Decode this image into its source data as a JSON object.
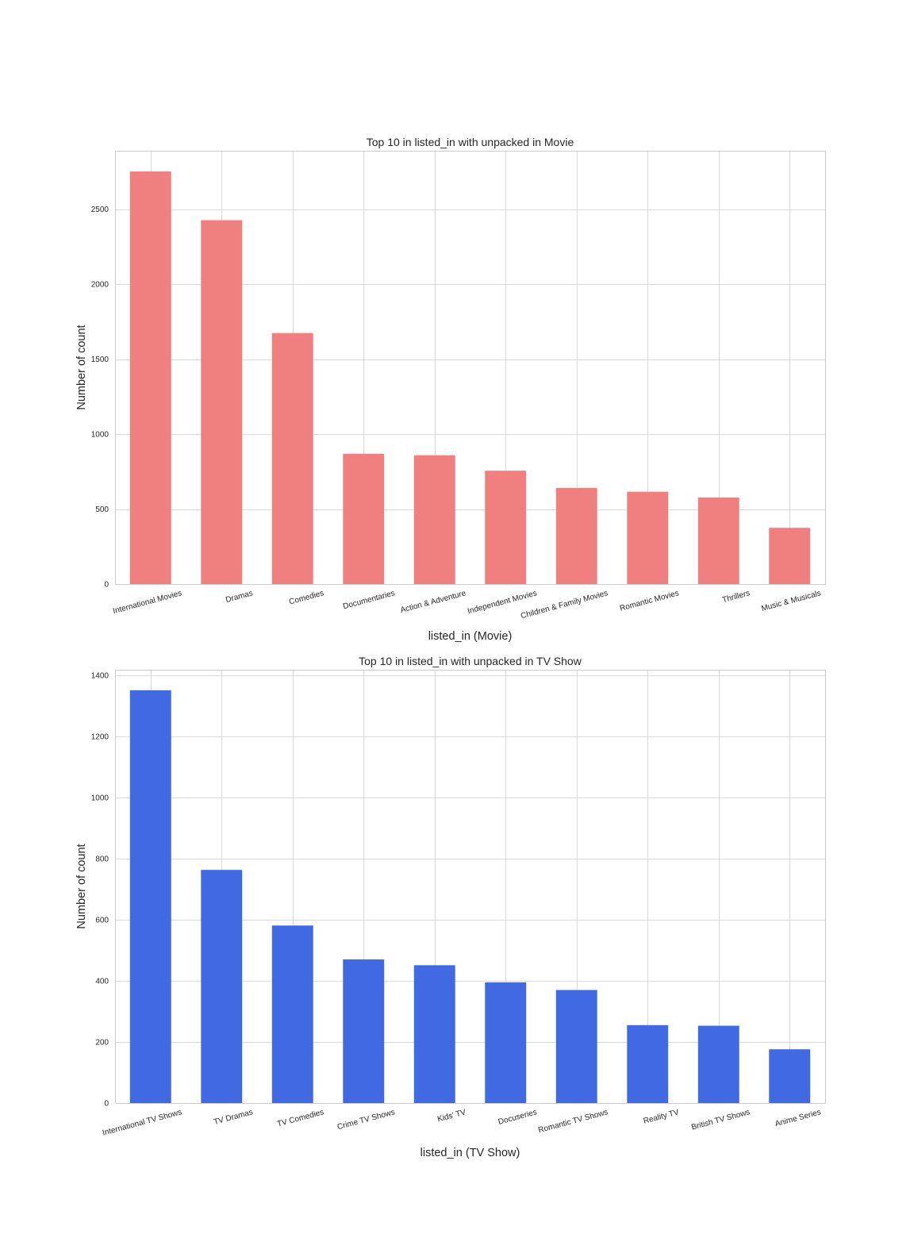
{
  "chart_data": [
    {
      "type": "bar",
      "title": "Top 10 in listed_in with unpacked in Movie",
      "xlabel": "listed_in (Movie)",
      "ylabel": "Number of count",
      "categories": [
        "International Movies",
        "Dramas",
        "Comedies",
        "Documentaries",
        "Action & Adventure",
        "Independent Movies",
        "Children & Family Movies",
        "Romantic Movies",
        "Thrillers",
        "Music & Musicals"
      ],
      "values": [
        2752,
        2427,
        1674,
        869,
        859,
        756,
        641,
        616,
        577,
        375
      ],
      "ylim": [
        0,
        2890
      ],
      "yticks": [
        0,
        500,
        1000,
        1500,
        2000,
        2500
      ],
      "grid": true,
      "color": "#f08080"
    },
    {
      "type": "bar",
      "title": "Top 10 in listed_in with unpacked in TV Show",
      "xlabel": "listed_in (TV Show)",
      "ylabel": "Number of count",
      "categories": [
        "International TV Shows",
        "TV Dramas",
        "TV Comedies",
        "Crime TV Shows",
        "Kids' TV",
        "Docuseries",
        "Romantic TV Shows",
        "Reality TV",
        "British TV Shows",
        "Anime Series"
      ],
      "values": [
        1351,
        763,
        581,
        470,
        451,
        395,
        370,
        255,
        253,
        176
      ],
      "ylim": [
        0,
        1418
      ],
      "yticks": [
        0,
        200,
        400,
        600,
        800,
        1000,
        1200,
        1400
      ],
      "grid": true,
      "color": "#4169e1"
    }
  ]
}
